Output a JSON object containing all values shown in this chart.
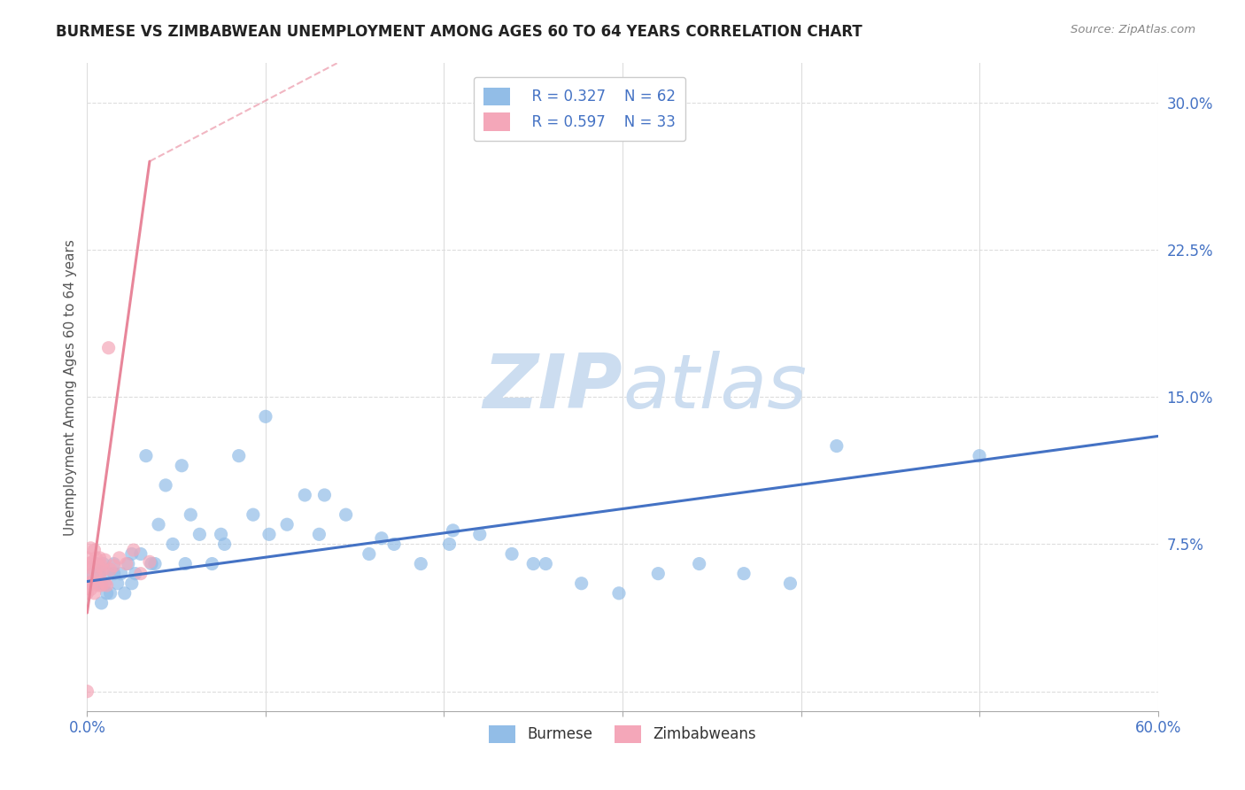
{
  "title": "BURMESE VS ZIMBABWEAN UNEMPLOYMENT AMONG AGES 60 TO 64 YEARS CORRELATION CHART",
  "source": "Source: ZipAtlas.com",
  "ylabel": "Unemployment Among Ages 60 to 64 years",
  "xlim": [
    0.0,
    0.6
  ],
  "ylim": [
    -0.01,
    0.32
  ],
  "xticks": [
    0.0,
    0.1,
    0.2,
    0.3,
    0.4,
    0.5,
    0.6
  ],
  "xticklabels_show": [
    "0.0%",
    "",
    "",
    "",
    "",
    "",
    "60.0%"
  ],
  "yticks": [
    0.0,
    0.075,
    0.15,
    0.225,
    0.3
  ],
  "yticklabels": [
    "",
    "7.5%",
    "15.0%",
    "22.5%",
    "30.0%"
  ],
  "burmese_color": "#92bde7",
  "zimbabwean_color": "#f4a7b9",
  "burmese_line_color": "#4472c4",
  "zimbabwean_line_color": "#e8869a",
  "watermark_zip": "ZIP",
  "watermark_atlas": "atlas",
  "watermark_color": "#ccddf0",
  "background_color": "#ffffff",
  "grid_color": "#dddddd",
  "burmese_x": [
    0.002,
    0.003,
    0.005,
    0.006,
    0.007,
    0.008,
    0.009,
    0.01,
    0.011,
    0.012,
    0.013,
    0.015,
    0.017,
    0.019,
    0.021,
    0.023,
    0.025,
    0.027,
    0.03,
    0.033,
    0.036,
    0.04,
    0.044,
    0.048,
    0.053,
    0.058,
    0.063,
    0.07,
    0.077,
    0.085,
    0.093,
    0.102,
    0.112,
    0.122,
    0.133,
    0.145,
    0.158,
    0.172,
    0.187,
    0.203,
    0.22,
    0.238,
    0.257,
    0.277,
    0.298,
    0.32,
    0.343,
    0.368,
    0.394,
    0.008,
    0.015,
    0.025,
    0.038,
    0.055,
    0.075,
    0.1,
    0.13,
    0.165,
    0.205,
    0.25,
    0.5,
    0.42
  ],
  "burmese_y": [
    0.055,
    0.06,
    0.065,
    0.055,
    0.06,
    0.045,
    0.065,
    0.055,
    0.05,
    0.06,
    0.05,
    0.065,
    0.055,
    0.06,
    0.05,
    0.065,
    0.055,
    0.06,
    0.07,
    0.12,
    0.065,
    0.085,
    0.105,
    0.075,
    0.115,
    0.09,
    0.08,
    0.065,
    0.075,
    0.12,
    0.09,
    0.08,
    0.085,
    0.1,
    0.1,
    0.09,
    0.07,
    0.075,
    0.065,
    0.075,
    0.08,
    0.07,
    0.065,
    0.055,
    0.05,
    0.06,
    0.065,
    0.06,
    0.055,
    0.055,
    0.06,
    0.07,
    0.065,
    0.065,
    0.08,
    0.14,
    0.08,
    0.078,
    0.082,
    0.065,
    0.12,
    0.125
  ],
  "zimbabwean_x": [
    0.0,
    0.0,
    0.0,
    0.001,
    0.001,
    0.002,
    0.002,
    0.002,
    0.003,
    0.003,
    0.004,
    0.004,
    0.005,
    0.005,
    0.006,
    0.006,
    0.007,
    0.007,
    0.008,
    0.008,
    0.009,
    0.01,
    0.01,
    0.011,
    0.012,
    0.013,
    0.015,
    0.018,
    0.022,
    0.026,
    0.03,
    0.035,
    0.0
  ],
  "zimbabwean_y": [
    0.05,
    0.06,
    0.068,
    0.055,
    0.065,
    0.052,
    0.063,
    0.073,
    0.056,
    0.066,
    0.05,
    0.072,
    0.058,
    0.068,
    0.054,
    0.064,
    0.058,
    0.068,
    0.054,
    0.064,
    0.062,
    0.055,
    0.067,
    0.054,
    0.175,
    0.062,
    0.064,
    0.068,
    0.065,
    0.072,
    0.06,
    0.066,
    0.0
  ],
  "burmese_line_x": [
    0.0,
    0.6
  ],
  "burmese_line_y": [
    0.056,
    0.13
  ],
  "zimbabwean_line_x": [
    0.0,
    0.035
  ],
  "zimbabwean_line_y": [
    0.04,
    0.27
  ]
}
